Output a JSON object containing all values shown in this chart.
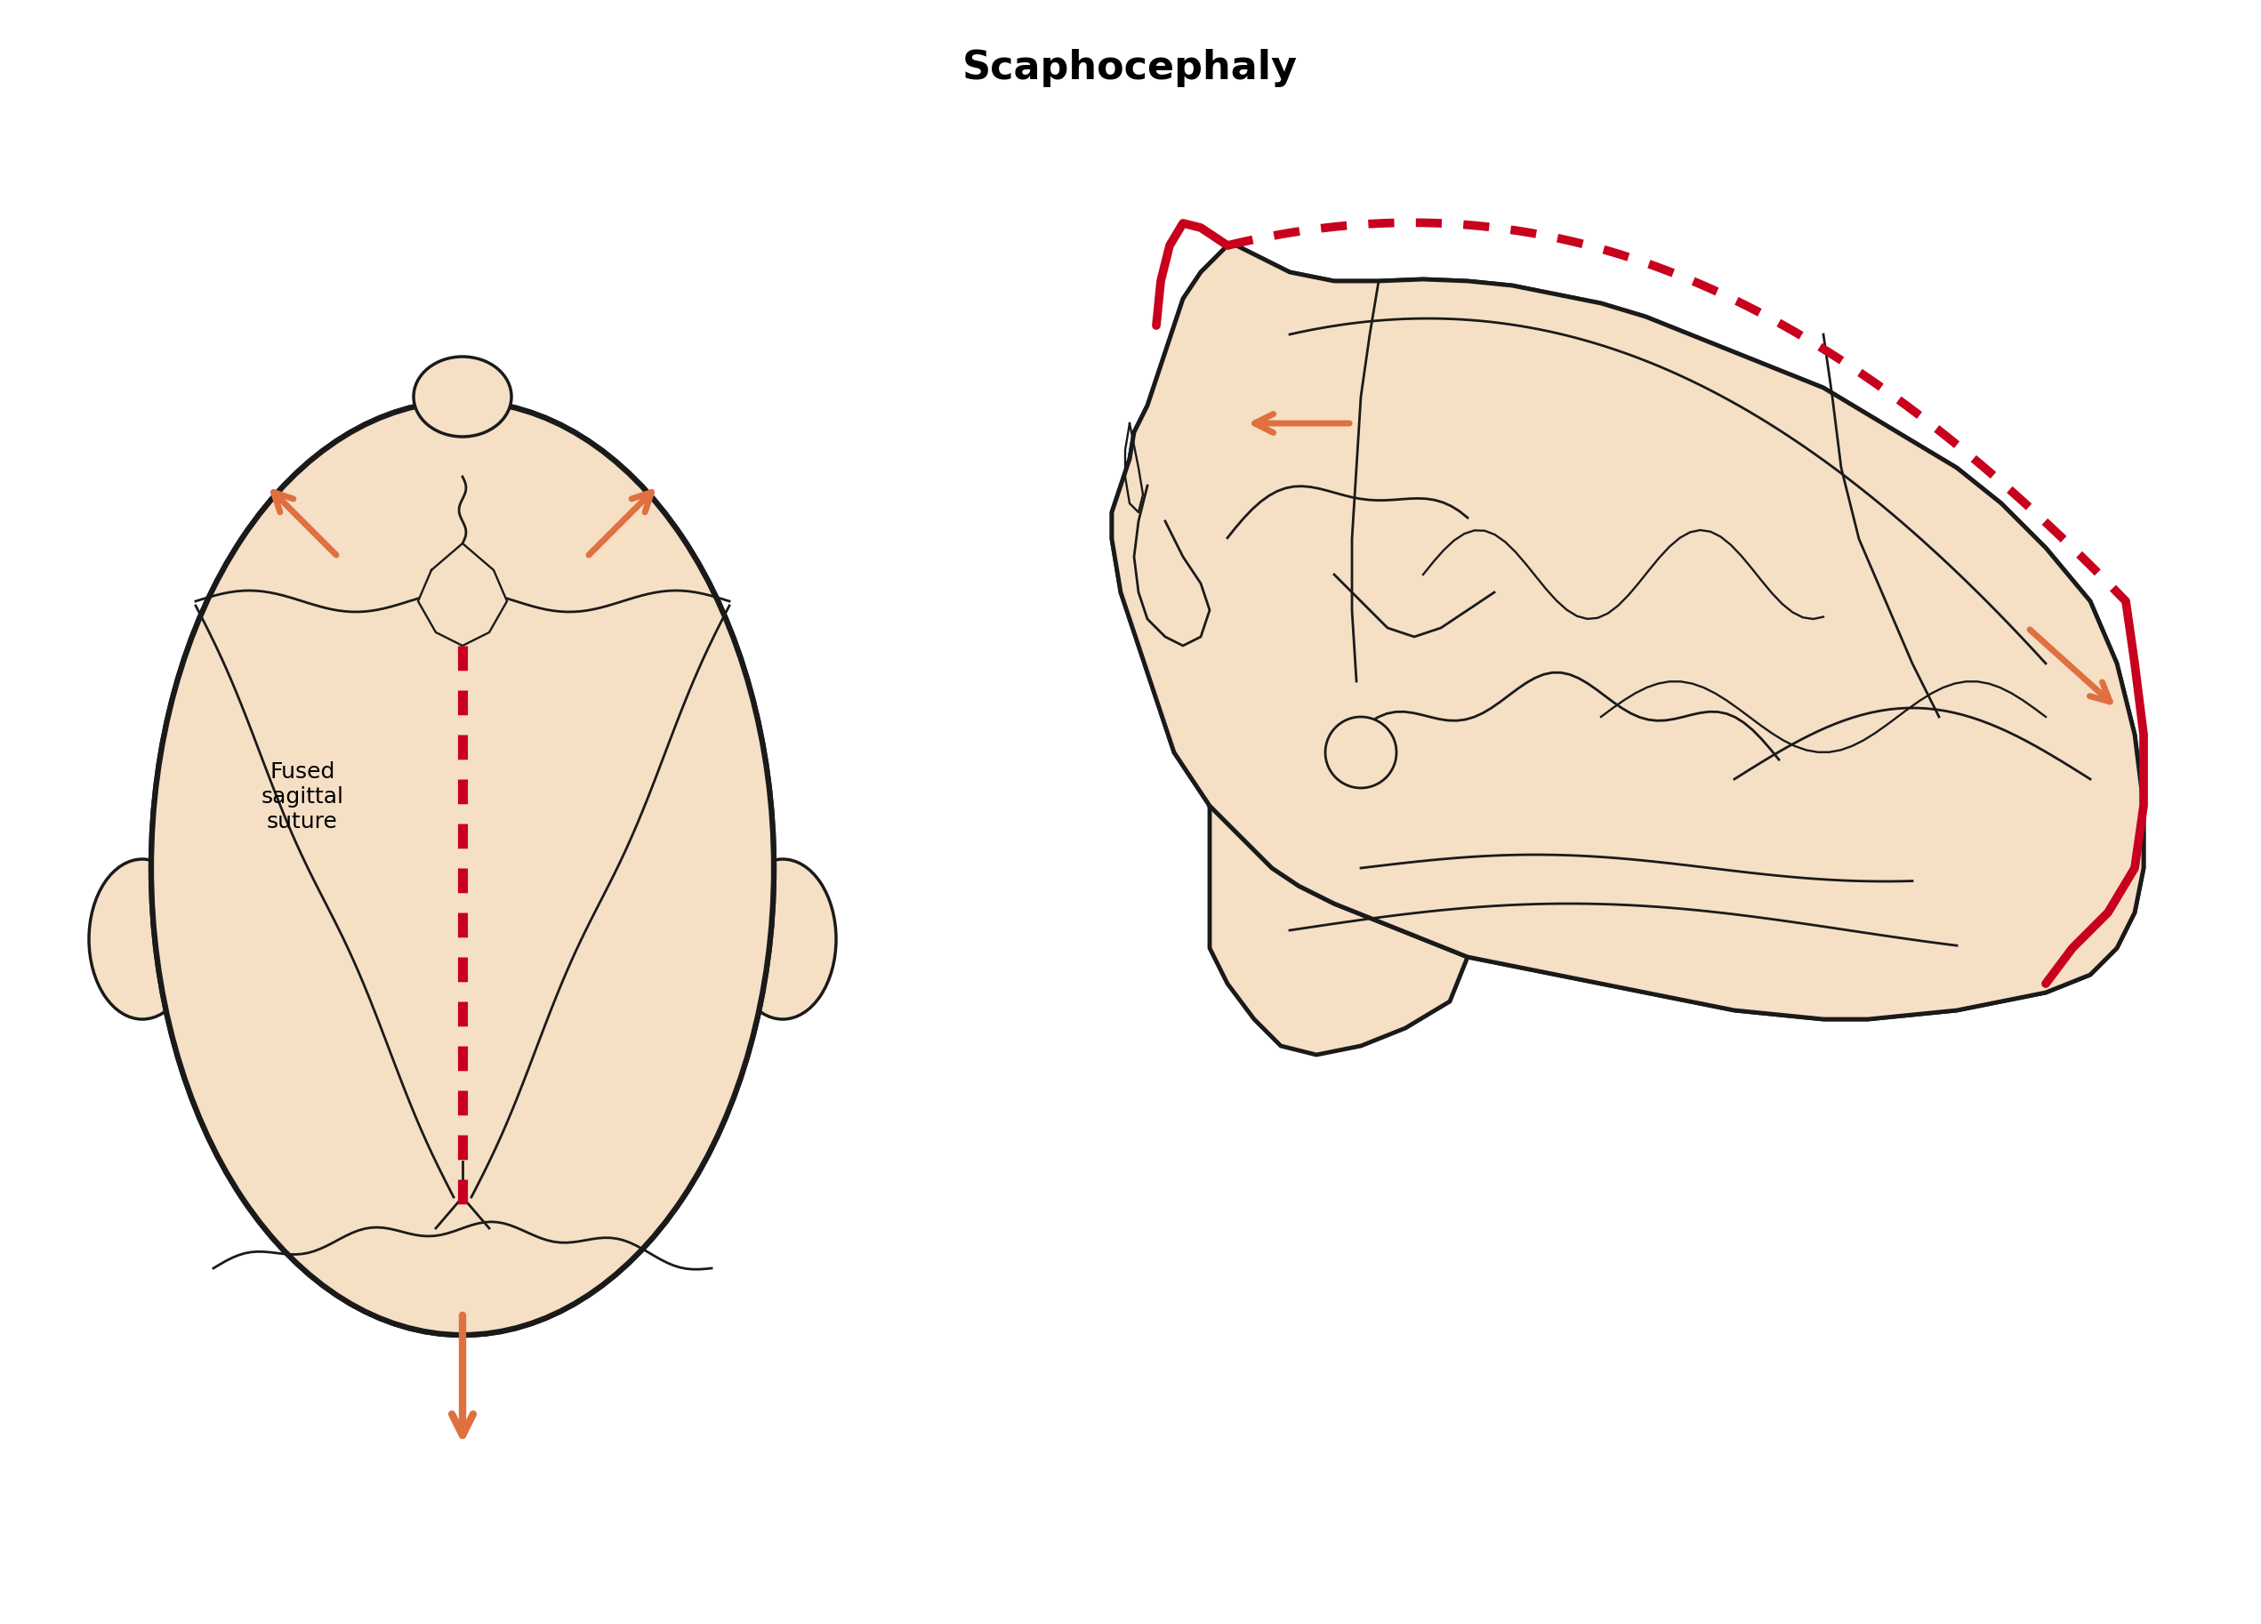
{
  "title": "Scaphocephaly",
  "title_fontsize": 32,
  "title_fontweight": "bold",
  "background_color": "#ffffff",
  "skull_fill": "#f5dfc5",
  "skull_edge": "#1a1a1a",
  "red_line": "#c8001e",
  "arrow_color": "#e07040",
  "label_text": "Fused\nsagittal\nsuture",
  "label_fontsize": 18,
  "edge_lw": 3.5,
  "inner_lw": 2.0,
  "red_lw": 7.0,
  "arrow_lw": 5.0,
  "arrow_ms": 38
}
